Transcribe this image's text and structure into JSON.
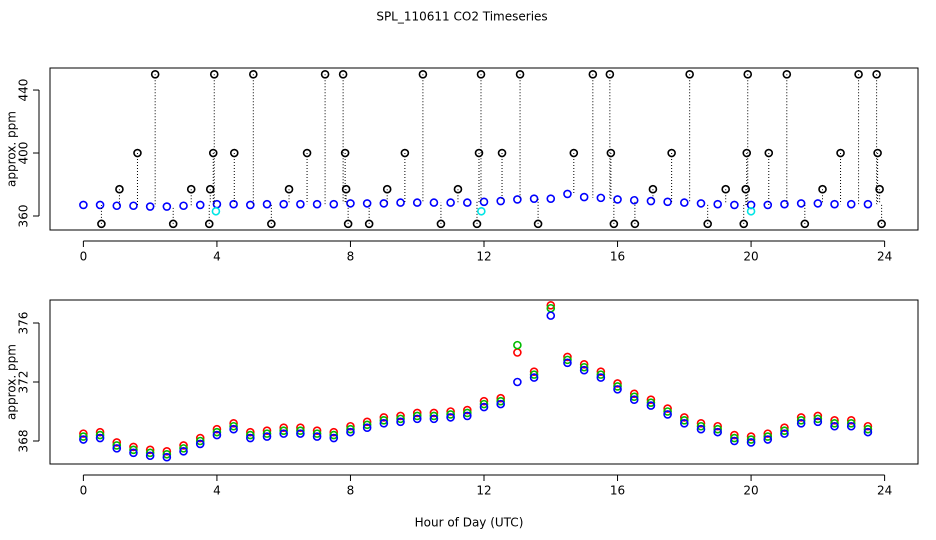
{
  "chart_data": [
    {
      "type": "scatter",
      "title": "SPL_110611  CO2 Timeseries",
      "ylabel": "approx. ppm",
      "xlim": [
        -1,
        25
      ],
      "xticks": [
        0,
        4,
        8,
        12,
        16,
        20,
        24
      ],
      "ylim": [
        351.1,
        454.0
      ],
      "yticks": [
        360,
        400,
        440
      ],
      "series": [
        {
          "color": "#0000ff",
          "x": [
            0,
            0.5,
            1,
            1.5,
            2,
            2.5,
            3,
            3.5,
            4,
            4.5,
            5,
            5.5,
            6,
            6.5,
            7,
            7.5,
            8,
            8.5,
            9,
            9.5,
            10,
            10.5,
            11,
            11.5,
            12,
            12.5,
            13,
            13.5,
            14,
            14.5,
            15,
            15.5,
            16,
            16.5,
            17,
            17.5,
            18,
            18.5,
            19,
            19.5,
            20,
            20.5,
            21,
            21.5,
            22,
            22.5,
            23,
            23.5
          ],
          "values": [
            367,
            367,
            366.5,
            366.5,
            366,
            366,
            366.5,
            367,
            367.5,
            367.5,
            367,
            367.5,
            367.5,
            367.5,
            367.5,
            367.5,
            368,
            368,
            368,
            368.5,
            368.5,
            368.5,
            368.5,
            368.5,
            369,
            369.5,
            370.5,
            371,
            371,
            374,
            372,
            371.5,
            370.5,
            370,
            369.5,
            369,
            368.5,
            368,
            367.5,
            367,
            367,
            367,
            367.5,
            368,
            368,
            367.5,
            367.5,
            367.5
          ]
        },
        {
          "color": "#000000",
          "drop_lines": true,
          "x": [
            0.54,
            1.08,
            1.62,
            2.15,
            2.69,
            3.23,
            3.77,
            3.8,
            3.89,
            3.92,
            4.52,
            5.09,
            5.63,
            6.16,
            6.7,
            7.24,
            7.78,
            7.84,
            7.87,
            7.93,
            8.56,
            9.1,
            9.63,
            10.17,
            10.71,
            11.22,
            11.79,
            11.85,
            11.91,
            12.54,
            13.08,
            13.62,
            14.69,
            15.26,
            15.77,
            15.8,
            15.89,
            16.52,
            17.06,
            17.62,
            18.16,
            18.7,
            19.24,
            19.78,
            19.84,
            19.87,
            19.9,
            20.53,
            21.07,
            21.61,
            22.14,
            22.68,
            23.22,
            23.76,
            23.79,
            23.85,
            23.91
          ],
          "values": [
            355,
            377,
            400,
            450,
            355,
            377,
            355,
            377,
            400,
            450,
            400,
            450,
            355,
            377,
            400,
            450,
            450,
            400,
            377,
            355,
            355,
            377,
            400,
            450,
            355,
            377,
            355,
            400,
            450,
            400,
            450,
            355,
            400,
            450,
            450,
            400,
            355,
            355,
            377,
            400,
            450,
            355,
            377,
            355,
            377,
            400,
            450,
            400,
            450,
            355,
            377,
            400,
            450,
            450,
            400,
            377,
            355
          ]
        },
        {
          "color": "#00e5e5",
          "x": [
            3.97,
            11.92,
            20.0
          ],
          "values": [
            363,
            363,
            363
          ]
        }
      ]
    },
    {
      "type": "scatter",
      "ylabel": "approx. ppm",
      "xlabel": "Hour of Day (UTC)",
      "xlim": [
        -1,
        25
      ],
      "xticks": [
        0,
        4,
        8,
        12,
        16,
        20,
        24
      ],
      "ylim": [
        366.44,
        377.56
      ],
      "yticks": [
        368,
        372,
        376
      ],
      "series": [
        {
          "color": "#ff0000",
          "x": [
            0,
            0.5,
            1,
            1.5,
            2,
            2.5,
            3,
            3.5,
            4,
            4.5,
            5,
            5.5,
            6,
            6.5,
            7,
            7.5,
            8,
            8.5,
            9,
            9.5,
            10,
            10.5,
            11,
            11.5,
            12,
            12.5,
            13,
            13.5,
            14,
            14.5,
            15,
            15.5,
            16,
            16.5,
            17,
            17.5,
            18,
            18.5,
            19,
            19.5,
            20,
            20.5,
            21,
            21.5,
            22,
            22.5,
            23,
            23.5
          ],
          "values": [
            368.5,
            368.6,
            367.9,
            367.6,
            367.4,
            367.3,
            367.7,
            368.2,
            368.8,
            369.2,
            368.6,
            368.7,
            368.9,
            368.9,
            368.7,
            368.6,
            369.0,
            369.3,
            369.6,
            369.7,
            369.9,
            369.9,
            370.0,
            370.1,
            370.7,
            370.9,
            374.0,
            372.7,
            377.2,
            373.7,
            373.2,
            372.7,
            371.9,
            371.2,
            370.8,
            370.2,
            369.6,
            369.2,
            369.0,
            368.4,
            368.3,
            368.5,
            368.9,
            369.6,
            369.7,
            369.4,
            369.4,
            369.0
          ]
        },
        {
          "color": "#00bb00",
          "x": [
            0,
            0.5,
            1,
            1.5,
            2,
            2.5,
            3,
            3.5,
            4,
            4.5,
            5,
            5.5,
            6,
            6.5,
            7,
            7.5,
            8,
            8.5,
            9,
            9.5,
            10,
            10.5,
            11,
            11.5,
            12,
            12.5,
            13,
            13.5,
            14,
            14.5,
            15,
            15.5,
            16,
            16.5,
            17,
            17.5,
            18,
            18.5,
            19,
            19.5,
            20,
            20.5,
            21,
            21.5,
            22,
            22.5,
            23,
            23.5
          ],
          "values": [
            368.3,
            368.4,
            367.7,
            367.4,
            367.2,
            367.1,
            367.5,
            368.0,
            368.6,
            369.0,
            368.4,
            368.5,
            368.7,
            368.7,
            368.5,
            368.4,
            368.8,
            369.1,
            369.4,
            369.5,
            369.7,
            369.7,
            369.8,
            369.9,
            370.5,
            370.7,
            374.5,
            372.5,
            377.0,
            373.5,
            373.0,
            372.5,
            371.7,
            371.0,
            370.6,
            370.0,
            369.4,
            369.0,
            368.8,
            368.2,
            368.1,
            368.3,
            368.7,
            369.4,
            369.5,
            369.2,
            369.2,
            368.8
          ]
        },
        {
          "color": "#0000ff",
          "x": [
            0,
            0.5,
            1,
            1.5,
            2,
            2.5,
            3,
            3.5,
            4,
            4.5,
            5,
            5.5,
            6,
            6.5,
            7,
            7.5,
            8,
            8.5,
            9,
            9.5,
            10,
            10.5,
            11,
            11.5,
            12,
            12.5,
            13,
            13.5,
            14,
            14.5,
            15,
            15.5,
            16,
            16.5,
            17,
            17.5,
            18,
            18.5,
            19,
            19.5,
            20,
            20.5,
            21,
            21.5,
            22,
            22.5,
            23,
            23.5
          ],
          "values": [
            368.1,
            368.2,
            367.5,
            367.2,
            367.0,
            366.9,
            367.3,
            367.8,
            368.4,
            368.8,
            368.2,
            368.3,
            368.5,
            368.5,
            368.3,
            368.2,
            368.6,
            368.9,
            369.2,
            369.3,
            369.5,
            369.5,
            369.6,
            369.7,
            370.3,
            370.5,
            372.0,
            372.3,
            376.5,
            373.3,
            372.8,
            372.3,
            371.5,
            370.8,
            370.4,
            369.8,
            369.2,
            368.8,
            368.6,
            368.0,
            367.9,
            368.1,
            368.5,
            369.2,
            369.3,
            369.0,
            369.0,
            368.6
          ]
        }
      ]
    }
  ]
}
